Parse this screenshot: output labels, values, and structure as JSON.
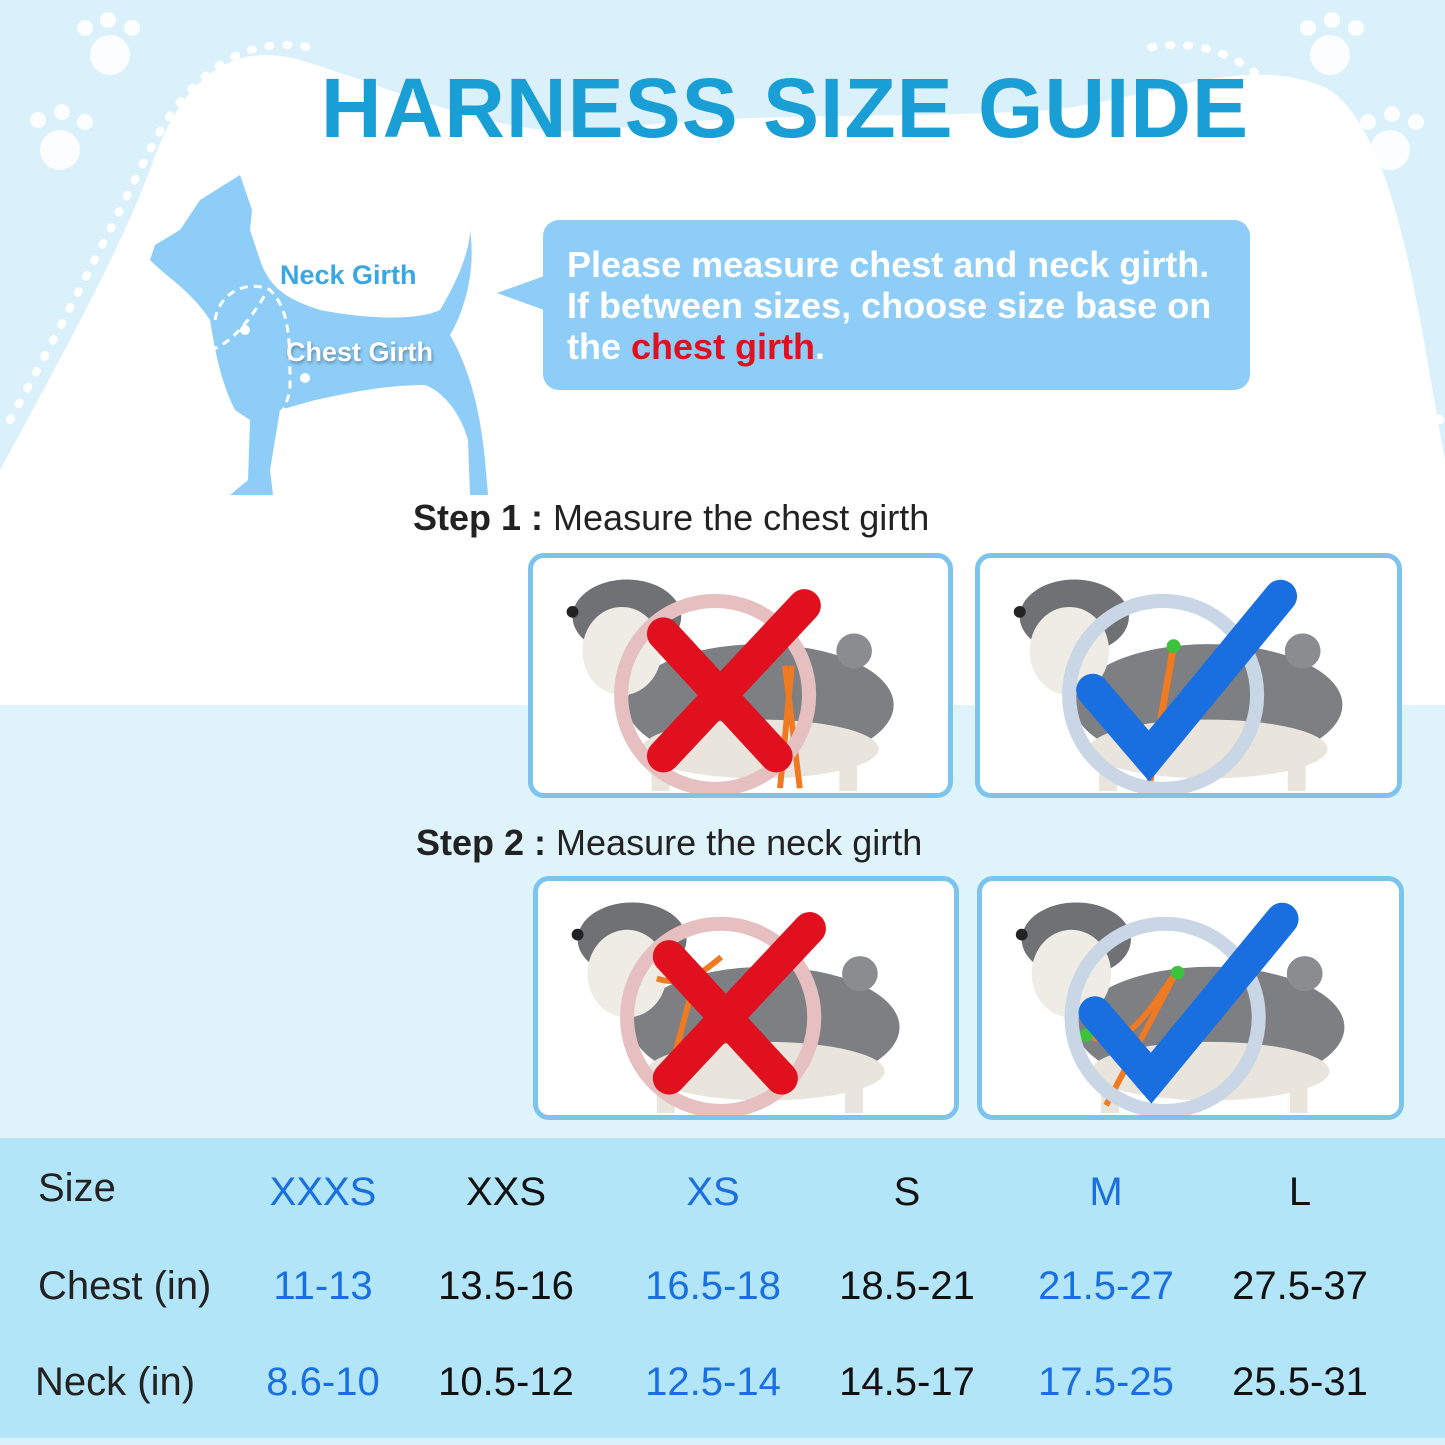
{
  "title": "HARNESS SIZE GUIDE",
  "diagram": {
    "neck_label": "Neck Girth",
    "chest_label": "Chest Girth"
  },
  "note": {
    "line1": "Please measure chest and neck girth.",
    "line2": "If between sizes, choose size base on",
    "line3_prefix": "the ",
    "line3_highlight": "chest girth",
    "line3_suffix": "."
  },
  "steps": [
    {
      "label": "Step 1 :",
      "text": "Measure the chest girth",
      "photos": [
        {
          "mark": "wrong-x-icon"
        },
        {
          "mark": "correct-check-icon"
        }
      ]
    },
    {
      "label": "Step 2 :",
      "text": "Measure the neck girth",
      "photos": [
        {
          "mark": "wrong-x-icon"
        },
        {
          "mark": "correct-check-icon"
        }
      ]
    }
  ],
  "table": {
    "row_labels": [
      "Size",
      "Chest (in)",
      "Neck (in)"
    ],
    "sizes": [
      "XXXS",
      "XXS",
      "XS",
      "S",
      "M",
      "L"
    ],
    "chest": [
      "11-13",
      "13.5-16",
      "16.5-18",
      "18.5-21",
      "21.5-27",
      "27.5-37"
    ],
    "neck": [
      "8.6-10",
      "10.5-12",
      "12.5-14",
      "14.5-17",
      "17.5-25",
      "25.5-31"
    ]
  },
  "colors": {
    "title": "#1a9ed6",
    "bubble": "#8dcdf7",
    "highlight": "#e0101e",
    "table_bg": "#b3e5f8",
    "alt_column_text": "#1a6fe0",
    "strap": "#f07a22",
    "marker": "#3cc23c"
  }
}
